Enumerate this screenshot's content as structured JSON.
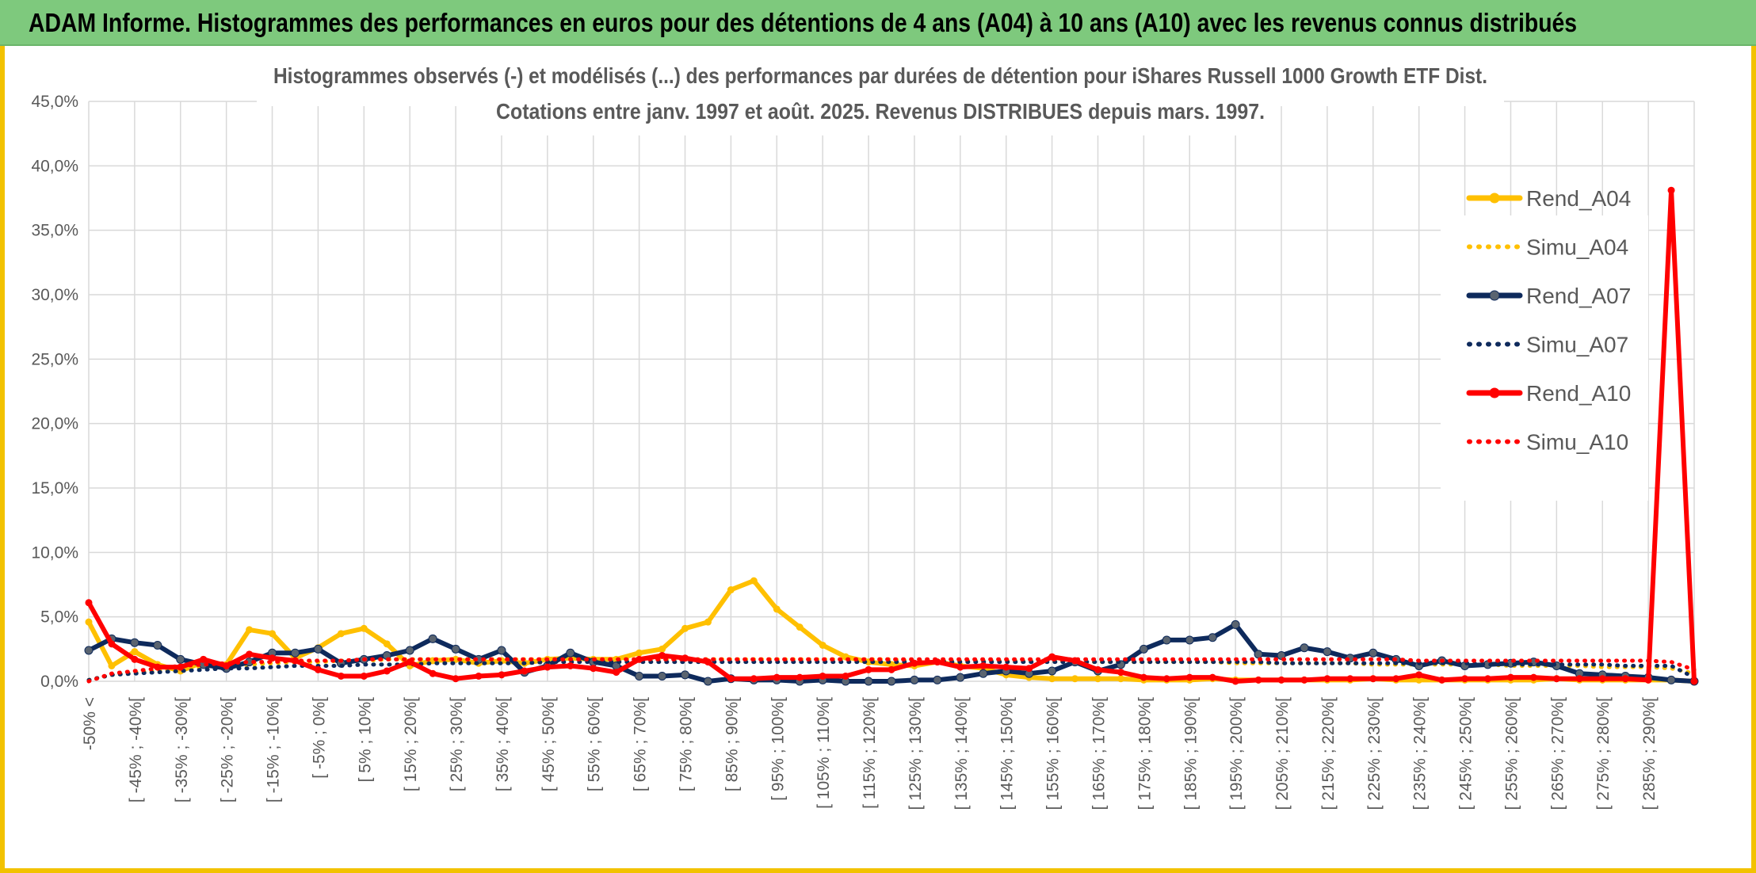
{
  "banner": {
    "title": "ADAM Informe. Histogrammes des performances en euros pour des détentions de 4 ans (A04) à 10 ans (A10) avec les revenus connus distribués"
  },
  "chart_data": {
    "type": "line",
    "title": "Histogrammes observés (-) et modélisés (...) des performances par durées de détention pour iShares Russell 1000 Growth ETF Dist.",
    "subtitle": "Cotations entre janv. 1997 et août. 2025. Revenus DISTRIBUES depuis mars. 1997.",
    "xlabel": "",
    "ylabel": "",
    "ylim": [
      0,
      45
    ],
    "yticks": [
      "0,0%",
      "5,0%",
      "10,0%",
      "15,0%",
      "20,0%",
      "25,0%",
      "30,0%",
      "35,0%",
      "40,0%",
      "45,0%"
    ],
    "grid": true,
    "legend_position": "right",
    "categories": [
      "-50% <",
      "[ -50% ; -45%[",
      "[ -45% ; -40%[",
      "[ -40% ; -35%[",
      "[ -35% ; -30%[",
      "[ -30% ; -25%[",
      "[ -25% ; -20%[",
      "[ -20% ; -15%[",
      "[ -15% ; -10%[",
      "[ -10% ; -5%[",
      "[ -5% ; 0%[",
      "[ 0% ; 5%[",
      "[ 5% ; 10%[",
      "[ 10% ; 15%[",
      "[ 15% ; 20%[",
      "[ 20% ; 25%[",
      "[ 25% ; 30%[",
      "[ 30% ; 35%[",
      "[ 35% ; 40%[",
      "[ 40% ; 45%[",
      "[ 45% ; 50%[",
      "[ 50% ; 55%[",
      "[ 55% ; 60%[",
      "[ 60% ; 65%[",
      "[ 65% ; 70%[",
      "[ 70% ; 75%[",
      "[ 75% ; 80%[",
      "[ 80% ; 85%[",
      "[ 85% ; 90%[",
      "[ 90% ; 95%[",
      "[ 95% ; 100%[",
      "[ 100% ; 105%[",
      "[ 105% ; 110%[",
      "[ 110% ; 115%[",
      "[ 115% ; 120%[",
      "[ 120% ; 125%[",
      "[ 125% ; 130%[",
      "[ 130% ; 135%[",
      "[ 135% ; 140%[",
      "[ 140% ; 145%[",
      "[ 145% ; 150%[",
      "[ 150% ; 155%[",
      "[ 155% ; 160%[",
      "[ 160% ; 165%[",
      "[ 165% ; 170%[",
      "[ 170% ; 175%[",
      "[ 175% ; 180%[",
      "[ 180% ; 185%[",
      "[ 185% ; 190%[",
      "[ 190% ; 195%[",
      "[ 195% ; 200%[",
      "[ 200% ; 205%[",
      "[ 205% ; 210%[",
      "[ 210% ; 215%[",
      "[ 215% ; 220%[",
      "[ 220% ; 225%[",
      "[ 225% ; 230%[",
      "[ 230% ; 235%[",
      "[ 235% ; 240%[",
      "[ 240% ; 245%[",
      "[ 245% ; 250%[",
      "[ 250% ; 255%[",
      "[ 255% ; 260%[",
      "[ 260% ; 265%[",
      "[ 265% ; 270%[",
      "[ 270% ; 275%[",
      "[ 275% ; 280%[",
      "[ 280% ; 285%[",
      "[ 285% ; 290%[",
      "[ 290% ; 295%[",
      "[ 295% ; 300%["
    ],
    "visible_tick_labels": [
      "-50% <",
      "[ -45% ; -40%[",
      "[ -35% ; -30%[",
      "[ -25% ; -20%[",
      "[ -15% ; -10%[",
      "[ -5% ; 0%[",
      "[ 5% ; 10%[",
      "[ 15% ; 20%[",
      "[ 25% ; 30%[",
      "[ 35% ; 40%[",
      "[ 45% ; 50%[",
      "[ 55% ; 60%[",
      "[ 65% ; 70%[",
      "[ 75% ; 80%[",
      "[ 85% ; 90%[",
      "[ 95% ; 100%[",
      "[ 105% ; 110%[",
      "[ 115% ; 120%[",
      "[ 125% ; 130%[",
      "[ 135% ; 140%[",
      "[ 145% ; 150%[",
      "[ 155% ; 160%[",
      "[ 165% ; 170%[",
      "[ 175% ; 180%[",
      "[ 185% ; 190%[",
      "[ 195% ; 200%[",
      "[ 205% ; 210%[",
      "[ 215% ; 220%[",
      "[ 225% ; 230%[",
      "[ 235% ; 240%[",
      "[ 245% ; 250%[",
      "[ 255% ; 260%[",
      "[ 265% ; 270%[",
      "[ 275% ; 280%[",
      "[ 285% ; 290%["
    ],
    "series": [
      {
        "name": "Rend_A04",
        "style": "solid",
        "color": "#ffc000",
        "values": [
          4.6,
          1.2,
          2.3,
          1.3,
          0.8,
          1.5,
          1.3,
          4.0,
          3.7,
          1.8,
          2.6,
          3.7,
          4.1,
          2.9,
          1.2,
          1.6,
          1.7,
          1.4,
          1.6,
          1.4,
          1.7,
          1.8,
          1.7,
          1.7,
          2.2,
          2.5,
          4.1,
          4.6,
          7.1,
          7.8,
          5.6,
          4.2,
          2.8,
          1.9,
          1.5,
          1.3,
          1.2,
          1.5,
          1.2,
          1.0,
          0.5,
          0.3,
          0.2,
          0.2,
          0.2,
          0.2,
          0.1,
          0.1,
          0.1,
          0.2,
          0.1,
          0.1,
          0.1,
          0.1,
          0.1,
          0.1,
          0.2,
          0.1,
          0.1,
          0.1,
          0.1,
          0.1,
          0.1,
          0.1,
          0.2,
          0.1,
          0.1,
          0.1,
          0.1,
          0.1,
          0.0
        ]
      },
      {
        "name": "Simu_A04",
        "style": "dotted",
        "color": "#ffc000",
        "values": [
          0.1,
          0.5,
          0.7,
          0.8,
          1.0,
          1.1,
          1.2,
          1.3,
          1.4,
          1.5,
          1.5,
          1.6,
          1.6,
          1.7,
          1.7,
          1.7,
          1.7,
          1.7,
          1.7,
          1.7,
          1.7,
          1.7,
          1.7,
          1.7,
          1.7,
          1.7,
          1.7,
          1.7,
          1.7,
          1.7,
          1.7,
          1.7,
          1.7,
          1.7,
          1.7,
          1.7,
          1.6,
          1.6,
          1.6,
          1.6,
          1.6,
          1.6,
          1.6,
          1.5,
          1.5,
          1.5,
          1.5,
          1.5,
          1.5,
          1.5,
          1.4,
          1.4,
          1.4,
          1.4,
          1.4,
          1.4,
          1.3,
          1.3,
          1.3,
          1.3,
          1.3,
          1.3,
          1.2,
          1.2,
          1.2,
          1.2,
          1.1,
          1.1,
          1.1,
          1.0,
          0.6
        ]
      },
      {
        "name": "Rend_A07",
        "style": "solid",
        "color": "#0e2a5c",
        "values": [
          2.4,
          3.3,
          3.0,
          2.8,
          1.7,
          1.3,
          1.0,
          1.5,
          2.2,
          2.2,
          2.5,
          1.4,
          1.7,
          2.0,
          2.4,
          3.3,
          2.5,
          1.7,
          2.4,
          0.7,
          1.2,
          2.2,
          1.5,
          1.2,
          0.4,
          0.4,
          0.5,
          0.0,
          0.2,
          0.1,
          0.1,
          0.0,
          0.1,
          0.0,
          0.0,
          0.0,
          0.1,
          0.1,
          0.3,
          0.6,
          0.8,
          0.6,
          0.8,
          1.5,
          0.8,
          1.3,
          2.5,
          3.2,
          3.2,
          3.4,
          4.4,
          2.1,
          2.0,
          2.6,
          2.3,
          1.8,
          2.2,
          1.7,
          1.2,
          1.6,
          1.2,
          1.3,
          1.4,
          1.5,
          1.2,
          0.6,
          0.5,
          0.4,
          0.3,
          0.1,
          0.0
        ]
      },
      {
        "name": "Simu_A07",
        "style": "dotted",
        "color": "#0e2a5c",
        "values": [
          0.1,
          0.5,
          0.6,
          0.7,
          0.8,
          0.9,
          1.0,
          1.0,
          1.1,
          1.2,
          1.2,
          1.2,
          1.3,
          1.3,
          1.3,
          1.4,
          1.4,
          1.4,
          1.4,
          1.4,
          1.5,
          1.5,
          1.5,
          1.5,
          1.5,
          1.5,
          1.5,
          1.5,
          1.5,
          1.5,
          1.5,
          1.5,
          1.5,
          1.5,
          1.5,
          1.5,
          1.5,
          1.5,
          1.5,
          1.5,
          1.5,
          1.5,
          1.5,
          1.5,
          1.5,
          1.5,
          1.5,
          1.5,
          1.5,
          1.5,
          1.5,
          1.5,
          1.4,
          1.4,
          1.4,
          1.4,
          1.4,
          1.4,
          1.4,
          1.4,
          1.4,
          1.3,
          1.3,
          1.3,
          1.3,
          1.3,
          1.3,
          1.2,
          1.2,
          1.2,
          0.3
        ]
      },
      {
        "name": "Rend_A10",
        "style": "solid",
        "color": "#ff0000",
        "values": [
          6.1,
          2.9,
          1.7,
          1.1,
          1.1,
          1.7,
          1.2,
          2.1,
          1.8,
          1.6,
          0.9,
          0.4,
          0.4,
          0.8,
          1.5,
          0.6,
          0.2,
          0.4,
          0.5,
          0.8,
          1.1,
          1.2,
          1.0,
          0.7,
          1.7,
          2.0,
          1.8,
          1.5,
          0.2,
          0.2,
          0.3,
          0.3,
          0.4,
          0.4,
          0.9,
          0.9,
          1.4,
          1.5,
          1.1,
          1.2,
          1.1,
          1.0,
          1.9,
          1.6,
          0.9,
          0.7,
          0.3,
          0.2,
          0.3,
          0.3,
          0.0,
          0.1,
          0.1,
          0.1,
          0.2,
          0.2,
          0.2,
          0.2,
          0.5,
          0.1,
          0.2,
          0.2,
          0.3,
          0.3,
          0.2,
          0.2,
          0.2,
          0.2,
          0.1,
          38.1,
          0.0
        ]
      },
      {
        "name": "Simu_A10",
        "style": "dotted",
        "color": "#ff0000",
        "values": [
          0.0,
          0.6,
          0.8,
          1.0,
          1.2,
          1.3,
          1.4,
          1.5,
          1.5,
          1.6,
          1.6,
          1.6,
          1.7,
          1.7,
          1.7,
          1.7,
          1.7,
          1.7,
          1.7,
          1.7,
          1.7,
          1.7,
          1.7,
          1.7,
          1.7,
          1.7,
          1.7,
          1.7,
          1.7,
          1.7,
          1.7,
          1.7,
          1.7,
          1.7,
          1.7,
          1.7,
          1.7,
          1.7,
          1.7,
          1.7,
          1.7,
          1.7,
          1.7,
          1.7,
          1.7,
          1.7,
          1.7,
          1.7,
          1.7,
          1.7,
          1.7,
          1.7,
          1.7,
          1.7,
          1.7,
          1.7,
          1.7,
          1.7,
          1.6,
          1.6,
          1.6,
          1.6,
          1.6,
          1.6,
          1.6,
          1.6,
          1.6,
          1.6,
          1.6,
          1.5,
          0.9
        ]
      }
    ]
  }
}
